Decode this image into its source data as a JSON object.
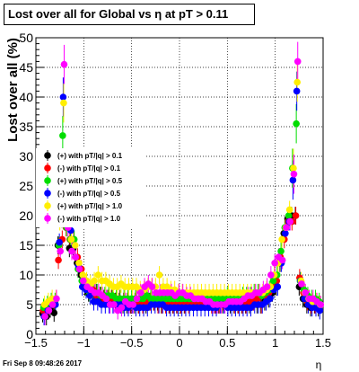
{
  "chart_data": {
    "type": "scatter",
    "title": "Lost over all for Global vs   η at pT > 0.11",
    "xlabel": "η",
    "ylabel": "Lost over all (%)",
    "xlim": [
      -1.5,
      1.5
    ],
    "ylim": [
      0,
      50
    ],
    "x_ticks": [
      -1.5,
      -1,
      -0.5,
      0,
      0.5,
      1,
      1.5
    ],
    "x_tick_labels": [
      "−1.5",
      "−1",
      "−0.5",
      "0",
      "0.5",
      "1",
      "1.5"
    ],
    "y_ticks": [
      0,
      5,
      10,
      15,
      20,
      25,
      30,
      35,
      40,
      45,
      50
    ],
    "grid": true,
    "legend_position": "left-middle",
    "series": [
      {
        "name": "(+) with pT/|q| > 0.1",
        "color": "#000000",
        "marker": "circle",
        "offset": -0.01,
        "x": [
          -1.42,
          -1.38,
          -1.34,
          -1.3,
          -1.26,
          -1.22,
          -1.18,
          -1.14,
          -1.1,
          -1.06,
          -1.02,
          -0.98,
          -0.94,
          -0.9,
          -0.86,
          -0.82,
          -0.78,
          -0.74,
          -0.7,
          -0.66,
          -0.62,
          -0.58,
          -0.54,
          -0.5,
          -0.46,
          -0.42,
          -0.38,
          -0.34,
          -0.3,
          -0.26,
          -0.22,
          -0.18,
          -0.14,
          -0.1,
          -0.06,
          -0.02,
          0.02,
          0.06,
          0.1,
          0.14,
          0.18,
          0.22,
          0.26,
          0.3,
          0.34,
          0.38,
          0.42,
          0.46,
          0.5,
          0.54,
          0.58,
          0.62,
          0.66,
          0.7,
          0.74,
          0.78,
          0.82,
          0.86,
          0.9,
          0.94,
          0.98,
          1.02,
          1.06,
          1.1,
          1.14,
          1.18,
          1.22,
          1.26,
          1.3,
          1.34,
          1.38,
          1.42,
          1.46
        ],
        "y": [
          3.5,
          3,
          4.3,
          3.6,
          15,
          19.5,
          20,
          14.5,
          14.5,
          12,
          10,
          8,
          7,
          7,
          7,
          6.5,
          6,
          6,
          6,
          5.5,
          5.5,
          5,
          5,
          5,
          5,
          5,
          5.5,
          5,
          5.5,
          5.5,
          5.5,
          5,
          5.5,
          5,
          5,
          5,
          5,
          5,
          5.5,
          5.5,
          6,
          6,
          6,
          5.5,
          5.5,
          5,
          5,
          5,
          5.5,
          5,
          5,
          5,
          5,
          5,
          5,
          5.5,
          5,
          5,
          5.5,
          6,
          7,
          8,
          12,
          17,
          19.5,
          20,
          20,
          8,
          6,
          5,
          4.5,
          5,
          4.5
        ]
      },
      {
        "name": "(-) with pT/|q| > 0.1",
        "color": "#ff0000",
        "marker": "circle",
        "offset": -0.005,
        "x": [
          -1.42,
          -1.38,
          -1.34,
          -1.3,
          -1.26,
          -1.22,
          -1.18,
          -1.14,
          -1.1,
          -1.06,
          -1.02,
          -0.98,
          -0.94,
          -0.9,
          -0.86,
          -0.82,
          -0.78,
          -0.74,
          -0.7,
          -0.66,
          -0.62,
          -0.58,
          -0.54,
          -0.5,
          -0.46,
          -0.42,
          -0.38,
          -0.34,
          -0.3,
          -0.26,
          -0.22,
          -0.18,
          -0.14,
          -0.1,
          -0.06,
          -0.02,
          0.02,
          0.06,
          0.1,
          0.14,
          0.18,
          0.22,
          0.26,
          0.3,
          0.34,
          0.38,
          0.42,
          0.46,
          0.5,
          0.54,
          0.58,
          0.62,
          0.66,
          0.7,
          0.74,
          0.78,
          0.82,
          0.86,
          0.9,
          0.94,
          0.98,
          1.02,
          1.06,
          1.1,
          1.14,
          1.18,
          1.22,
          1.26,
          1.3,
          1.34,
          1.38,
          1.42,
          1.46
        ],
        "y": [
          4,
          4.5,
          5,
          5,
          12.5,
          16,
          18,
          16,
          16,
          13,
          11,
          8.5,
          7.5,
          7.5,
          6.5,
          6.5,
          6,
          6,
          6,
          5.5,
          6,
          5.5,
          5.5,
          5,
          5.5,
          5,
          5,
          5.5,
          5.5,
          5.5,
          5,
          5,
          5,
          5,
          5,
          5,
          5,
          5,
          5,
          5.5,
          5.5,
          5.5,
          5.5,
          5.5,
          5,
          5,
          5,
          5.5,
          5.5,
          5.5,
          5,
          5,
          5,
          5,
          5.5,
          5.5,
          6,
          5,
          6.5,
          7,
          8,
          9,
          13,
          16,
          19,
          19,
          20,
          9.5,
          7,
          5.5,
          5,
          5,
          5
        ]
      },
      {
        "name": "(+) with pT/|q| > 0.5",
        "color": "#00dd00",
        "marker": "circle",
        "offset": 0,
        "x": [
          -1.42,
          -1.38,
          -1.34,
          -1.3,
          -1.26,
          -1.22,
          -1.18,
          -1.14,
          -1.1,
          -1.06,
          -1.02,
          -0.98,
          -0.94,
          -0.9,
          -0.86,
          -0.82,
          -0.78,
          -0.74,
          -0.7,
          -0.66,
          -0.62,
          -0.58,
          -0.54,
          -0.5,
          -0.46,
          -0.42,
          -0.38,
          -0.34,
          -0.3,
          -0.26,
          -0.22,
          -0.18,
          -0.14,
          -0.1,
          -0.06,
          -0.02,
          0.02,
          0.06,
          0.1,
          0.14,
          0.18,
          0.22,
          0.26,
          0.3,
          0.34,
          0.38,
          0.42,
          0.46,
          0.5,
          0.54,
          0.58,
          0.62,
          0.66,
          0.7,
          0.74,
          0.78,
          0.82,
          0.86,
          0.9,
          0.94,
          0.98,
          1.02,
          1.06,
          1.1,
          1.14,
          1.18,
          1.22,
          1.26,
          1.3,
          1.34,
          1.38,
          1.42,
          1.46
        ],
        "y": [
          4.5,
          5,
          5.5,
          5.5,
          15,
          33.5,
          18,
          16,
          16,
          11,
          9,
          8,
          7,
          7,
          7,
          6.5,
          6.5,
          6.5,
          6.5,
          6,
          6,
          6,
          6,
          6,
          6,
          6,
          6,
          6.5,
          6,
          6,
          6,
          6,
          6,
          6,
          6,
          6,
          6,
          6,
          6,
          6,
          6,
          6,
          6,
          6,
          6,
          6,
          6,
          6,
          6.5,
          6,
          6,
          6,
          6.5,
          6.5,
          6.5,
          7,
          7,
          6.5,
          7,
          7.5,
          9,
          10,
          14,
          18,
          20,
          28,
          35.5,
          9,
          7.5,
          6.5,
          6,
          6,
          5.5
        ]
      },
      {
        "name": "(-) with pT/|q| > 0.5",
        "color": "#0000ff",
        "marker": "circle",
        "offset": 0.005,
        "x": [
          -1.42,
          -1.38,
          -1.34,
          -1.3,
          -1.26,
          -1.22,
          -1.18,
          -1.14,
          -1.1,
          -1.06,
          -1.02,
          -0.98,
          -0.94,
          -0.9,
          -0.86,
          -0.82,
          -0.78,
          -0.74,
          -0.7,
          -0.66,
          -0.62,
          -0.58,
          -0.54,
          -0.5,
          -0.46,
          -0.42,
          -0.38,
          -0.34,
          -0.3,
          -0.26,
          -0.22,
          -0.18,
          -0.14,
          -0.1,
          -0.06,
          -0.02,
          0.02,
          0.06,
          0.1,
          0.14,
          0.18,
          0.22,
          0.26,
          0.3,
          0.34,
          0.38,
          0.42,
          0.46,
          0.5,
          0.54,
          0.58,
          0.62,
          0.66,
          0.7,
          0.74,
          0.78,
          0.82,
          0.86,
          0.9,
          0.94,
          0.98,
          1.02,
          1.06,
          1.1,
          1.14,
          1.18,
          1.22,
          1.26,
          1.3,
          1.34,
          1.38,
          1.42,
          1.46
        ],
        "y": [
          3,
          4,
          5,
          5,
          15.5,
          40,
          20,
          17.5,
          15,
          11.5,
          8,
          7.5,
          6.5,
          5.5,
          5.5,
          5,
          5,
          5,
          5,
          5,
          5,
          4.5,
          4.5,
          5,
          4.5,
          4.5,
          4.5,
          4.5,
          5,
          5,
          5,
          5,
          4.5,
          4.5,
          4.5,
          4.5,
          4.5,
          4.5,
          4.5,
          4.5,
          4.5,
          4.5,
          4.5,
          4.5,
          4.5,
          4.5,
          5,
          5,
          4.5,
          4.5,
          4.5,
          4.5,
          4.5,
          4.5,
          4.5,
          5,
          5,
          5,
          5.5,
          6,
          7.5,
          8,
          12,
          17,
          19,
          26,
          41,
          9,
          6,
          5,
          4.5,
          4.5,
          4
        ]
      },
      {
        "name": "(+) with pT/|q| > 1.0",
        "color": "#ffee00",
        "marker": "circle",
        "offset": 0.01,
        "x": [
          -1.42,
          -1.38,
          -1.34,
          -1.3,
          -1.26,
          -1.22,
          -1.18,
          -1.14,
          -1.1,
          -1.06,
          -1.02,
          -0.98,
          -0.94,
          -0.9,
          -0.86,
          -0.82,
          -0.78,
          -0.74,
          -0.7,
          -0.66,
          -0.62,
          -0.58,
          -0.54,
          -0.5,
          -0.46,
          -0.42,
          -0.38,
          -0.34,
          -0.3,
          -0.26,
          -0.22,
          -0.18,
          -0.14,
          -0.1,
          -0.06,
          -0.02,
          0.02,
          0.06,
          0.1,
          0.14,
          0.18,
          0.22,
          0.26,
          0.3,
          0.34,
          0.38,
          0.42,
          0.46,
          0.5,
          0.54,
          0.58,
          0.62,
          0.66,
          0.7,
          0.74,
          0.78,
          0.82,
          0.86,
          0.9,
          0.94,
          0.98,
          1.02,
          1.06,
          1.1,
          1.14,
          1.18,
          1.22,
          1.26,
          1.3,
          1.34,
          1.38,
          1.42,
          1.46
        ],
        "y": [
          5,
          5.5,
          6,
          6,
          19,
          39,
          20,
          16,
          15,
          12,
          10,
          9,
          8.5,
          9,
          10,
          9,
          9,
          8.5,
          8,
          8,
          8.5,
          8,
          8,
          8,
          8,
          7.5,
          7.5,
          8,
          8,
          8,
          10,
          8,
          8,
          7.5,
          7.5,
          7,
          7,
          7,
          7,
          7,
          7,
          7,
          7,
          7,
          7,
          7,
          7,
          7,
          7,
          7,
          7,
          7,
          7,
          7,
          7,
          7,
          7,
          7,
          7.5,
          8,
          10,
          12,
          16,
          18,
          21,
          28,
          42.5,
          9,
          7,
          6,
          5.5,
          5.5,
          5
        ]
      },
      {
        "name": "(-) with pT/|q| > 1.0",
        "color": "#ff00ff",
        "marker": "circle",
        "offset": 0.015,
        "x": [
          -1.42,
          -1.38,
          -1.34,
          -1.3,
          -1.26,
          -1.22,
          -1.18,
          -1.14,
          -1.1,
          -1.06,
          -1.02,
          -0.98,
          -0.94,
          -0.9,
          -0.86,
          -0.82,
          -0.78,
          -0.74,
          -0.7,
          -0.66,
          -0.62,
          -0.58,
          -0.54,
          -0.5,
          -0.46,
          -0.42,
          -0.38,
          -0.34,
          -0.3,
          -0.26,
          -0.22,
          -0.18,
          -0.14,
          -0.1,
          -0.06,
          -0.02,
          0.02,
          0.06,
          0.1,
          0.14,
          0.18,
          0.22,
          0.26,
          0.3,
          0.34,
          0.38,
          0.42,
          0.46,
          0.5,
          0.54,
          0.58,
          0.62,
          0.66,
          0.7,
          0.74,
          0.78,
          0.82,
          0.86,
          0.9,
          0.94,
          0.98,
          1.02,
          1.06,
          1.1,
          1.14,
          1.18,
          1.22,
          1.26,
          1.3,
          1.34,
          1.38,
          1.42,
          1.46
        ],
        "y": [
          3,
          4,
          5,
          6,
          14,
          45.5,
          18,
          14,
          13,
          11,
          9,
          8,
          7.5,
          7,
          7,
          6.5,
          6,
          5,
          5,
          4,
          4.5,
          5.5,
          5,
          5,
          6,
          7,
          8,
          8.5,
          8,
          7,
          7,
          7,
          7,
          7,
          6.5,
          7,
          7,
          6.5,
          6.5,
          6,
          6,
          6,
          5.5,
          5.5,
          5,
          5,
          5,
          5,
          5.5,
          5.5,
          5.5,
          5.5,
          6,
          6.5,
          6.5,
          7,
          7,
          7.5,
          8,
          10,
          12,
          13,
          12.5,
          18,
          19,
          27,
          46,
          8.5,
          7,
          6,
          6,
          5.5,
          5
        ]
      }
    ],
    "error_half_height": 1.5
  },
  "footer": {
    "timestamp": "Fri Sep  8 09:48:26 2017"
  }
}
